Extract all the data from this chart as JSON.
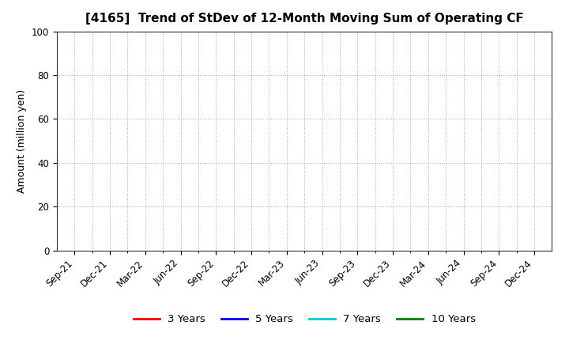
{
  "title": "[4165]  Trend of StDev of 12-Month Moving Sum of Operating CF",
  "ylabel": "Amount (million yen)",
  "ylim": [
    0,
    100
  ],
  "yticks": [
    0,
    20,
    40,
    60,
    80,
    100
  ],
  "background_color": "#ffffff",
  "grid_color": "#aaaaaa",
  "title_fontsize": 11,
  "axis_fontsize": 9,
  "tick_fontsize": 8.5,
  "legend_entries": [
    {
      "label": "3 Years",
      "color": "#ff0000"
    },
    {
      "label": "5 Years",
      "color": "#0000ff"
    },
    {
      "label": "7 Years",
      "color": "#00cccc"
    },
    {
      "label": "10 Years",
      "color": "#008000"
    }
  ],
  "x_tick_labels": [
    "Sep-21",
    "Dec-21",
    "Mar-22",
    "Jun-22",
    "Sep-22",
    "Dec-22",
    "Mar-23",
    "Jun-23",
    "Sep-23",
    "Dec-23",
    "Mar-24",
    "Jun-24",
    "Sep-24",
    "Dec-24"
  ]
}
